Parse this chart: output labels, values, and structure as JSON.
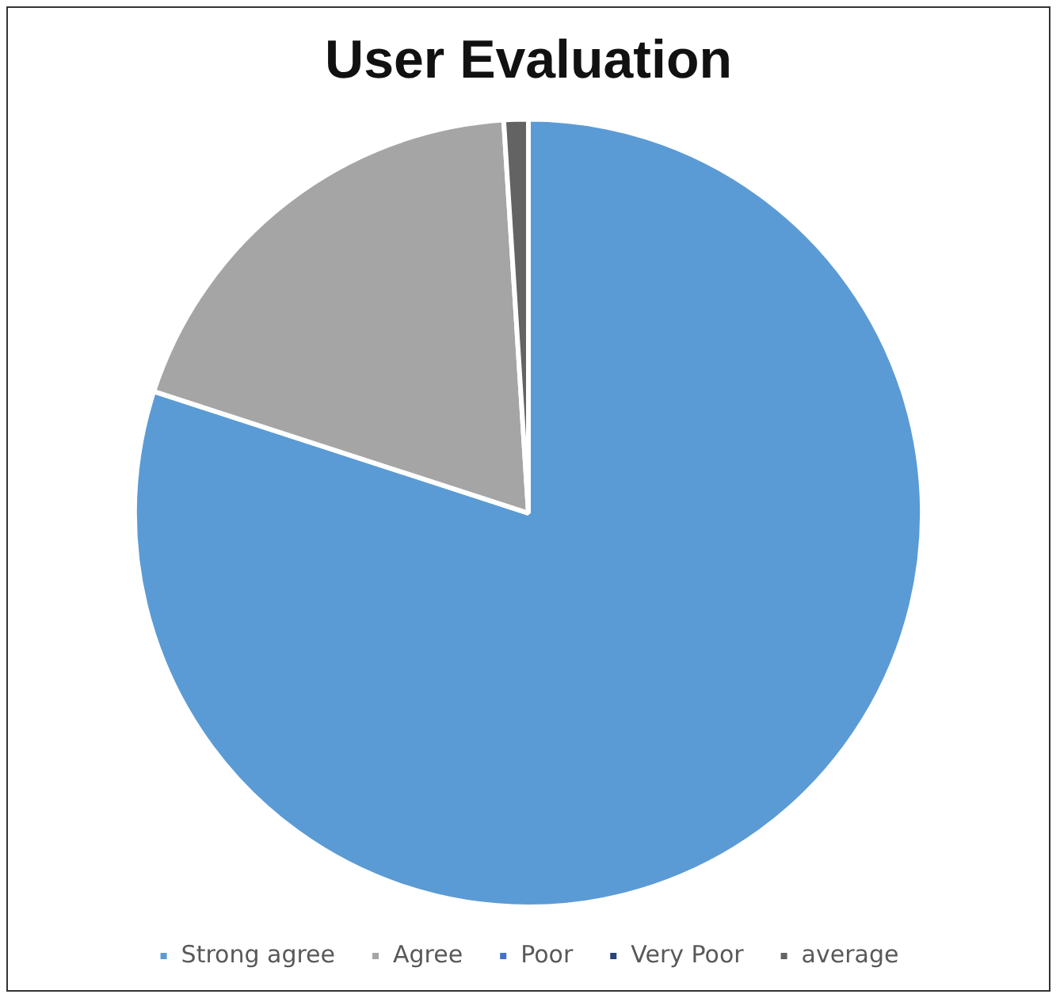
{
  "chart_data": {
    "type": "pie",
    "title": "User Evaluation",
    "categories": [
      "Strong agree",
      "Agree",
      "Poor",
      "Very Poor",
      "average"
    ],
    "values": [
      80,
      19,
      0,
      0,
      1
    ],
    "colors": [
      "#5b9bd5",
      "#a5a5a5",
      "#4472c4",
      "#264478",
      "#636363"
    ],
    "legend": "bottom"
  }
}
